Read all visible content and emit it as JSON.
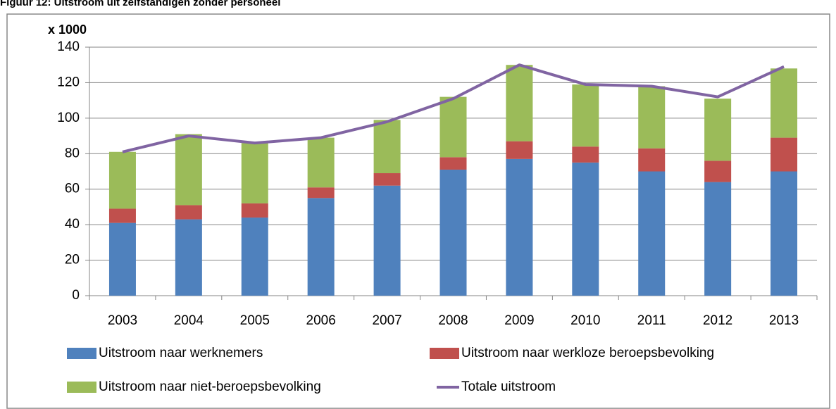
{
  "chart_data": {
    "type": "bar",
    "stacked": true,
    "title": "Figuur 12: Uitstroom uit zelfstandigen zonder personeel",
    "y_label": "x 1000",
    "categories": [
      "2003",
      "2004",
      "2005",
      "2006",
      "2007",
      "2008",
      "2009",
      "2010",
      "2011",
      "2012",
      "2013"
    ],
    "series": [
      {
        "name": "Uitstroom naar werknemers",
        "color": "#4f81bd",
        "values": [
          41,
          43,
          44,
          55,
          62,
          71,
          77,
          75,
          70,
          64,
          70
        ]
      },
      {
        "name": "Uitstroom naar werkloze beroepsbevolking",
        "color": "#c0504d",
        "values": [
          8,
          8,
          8,
          6,
          7,
          7,
          10,
          9,
          13,
          12,
          19
        ]
      },
      {
        "name": "Uitstroom naar niet-beroepsbevolking",
        "color": "#9bbb59",
        "values": [
          32,
          40,
          34,
          28,
          30,
          34,
          43,
          35,
          35,
          35,
          39
        ]
      },
      {
        "name": "Totale uitstroom",
        "color": "#8064a2",
        "type": "line",
        "values": [
          81,
          90,
          86,
          89,
          98,
          111,
          130,
          119,
          118,
          112,
          129
        ]
      }
    ],
    "ylim": [
      0,
      140
    ],
    "yticks": [
      0,
      20,
      40,
      60,
      80,
      100,
      120,
      140
    ],
    "grid": true
  }
}
